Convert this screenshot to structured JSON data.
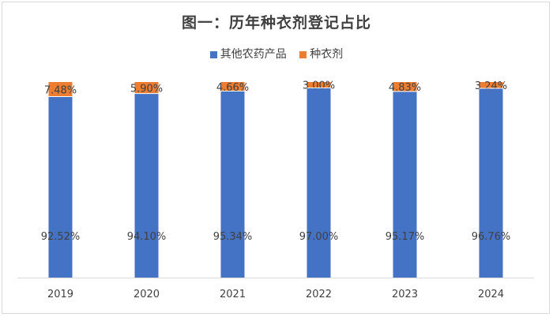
{
  "chart_data": {
    "type": "bar",
    "stacked": true,
    "percent_stacked": true,
    "title": "图一：历年种衣剂登记占比",
    "categories": [
      "2019",
      "2020",
      "2021",
      "2022",
      "2023",
      "2024"
    ],
    "series": [
      {
        "name": "其他农药产品",
        "color": "#4472C4",
        "values": [
          92.52,
          94.1,
          95.34,
          97.0,
          95.17,
          96.76
        ],
        "labels": [
          "92.52%",
          "94.10%",
          "95.34%",
          "97.00%",
          "95.17%",
          "96.76%"
        ]
      },
      {
        "name": "种衣剂",
        "color": "#ED7D31",
        "values": [
          7.48,
          5.9,
          4.66,
          3.0,
          4.83,
          3.24
        ],
        "labels": [
          "7.48%",
          "5.90%",
          "4.66%",
          "3.00%",
          "4.83%",
          "3.24%"
        ]
      }
    ],
    "legend_position": "top",
    "grid": false
  }
}
